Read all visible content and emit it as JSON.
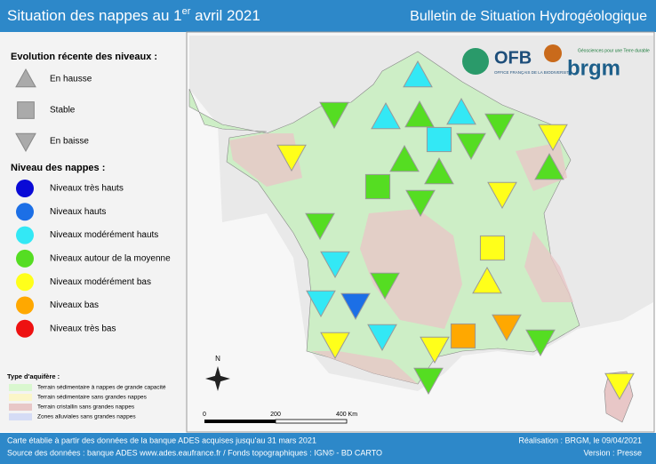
{
  "header": {
    "title": "Situation des nappes au 1",
    "title_sup": "er",
    "title_end": " avril 2021",
    "bulletin": "Bulletin de Situation Hydrogéologique"
  },
  "legend": {
    "trend_title": "Evolution récente des niveaux :",
    "trends": [
      "En hausse",
      "Stable",
      "En baisse"
    ],
    "level_title": "Niveau des nappes :",
    "levels": [
      {
        "label": "Niveaux très hauts",
        "color": "#0a0ad6"
      },
      {
        "label": "Niveaux hauts",
        "color": "#1c6fe6"
      },
      {
        "label": "Niveaux modérément hauts",
        "color": "#33e8f5"
      },
      {
        "label": "Niveaux autour de la moyenne",
        "color": "#55dd22"
      },
      {
        "label": "Niveaux modérément bas",
        "color": "#ffff1a"
      },
      {
        "label": "Niveaux bas",
        "color": "#ffa800"
      },
      {
        "label": "Niveaux très bas",
        "color": "#ee1111"
      }
    ],
    "aquifer_title": "Type d'aquifère :",
    "aquifers": [
      {
        "label": "Terrain sédimentaire à nappes de grande capacité",
        "color": "#d9f7cf"
      },
      {
        "label": "Terrain sédimentaire sans grandes nappes",
        "color": "#fbf6c8"
      },
      {
        "label": "Terrain cristallin sans grandes nappes",
        "color": "#e8c7c7"
      },
      {
        "label": "Zones alluviales sans grandes nappes",
        "color": "#d5dcf5"
      }
    ]
  },
  "map": {
    "north": "N",
    "scale": [
      "0",
      "200",
      "400 Km"
    ],
    "ofb": "OFB",
    "ofb_sub": "OFFICE FRANÇAIS DE LA BIODIVERSITÉ",
    "brgm": "brgm",
    "brgm_sub": "Géosciences pour une Terre durable"
  },
  "footer": {
    "left1": "Carte établie à partir des données de la banque ADES acquises jusqu'au 31 mars 2021",
    "left2": "Source des données : banque ADES www.ades.eaufrance.fr / Fonds topographiques : IGN© - BD CARTO",
    "right1": "Réalisation : BRGM, le 09/04/2021",
    "right2": "Version : Presse"
  }
}
